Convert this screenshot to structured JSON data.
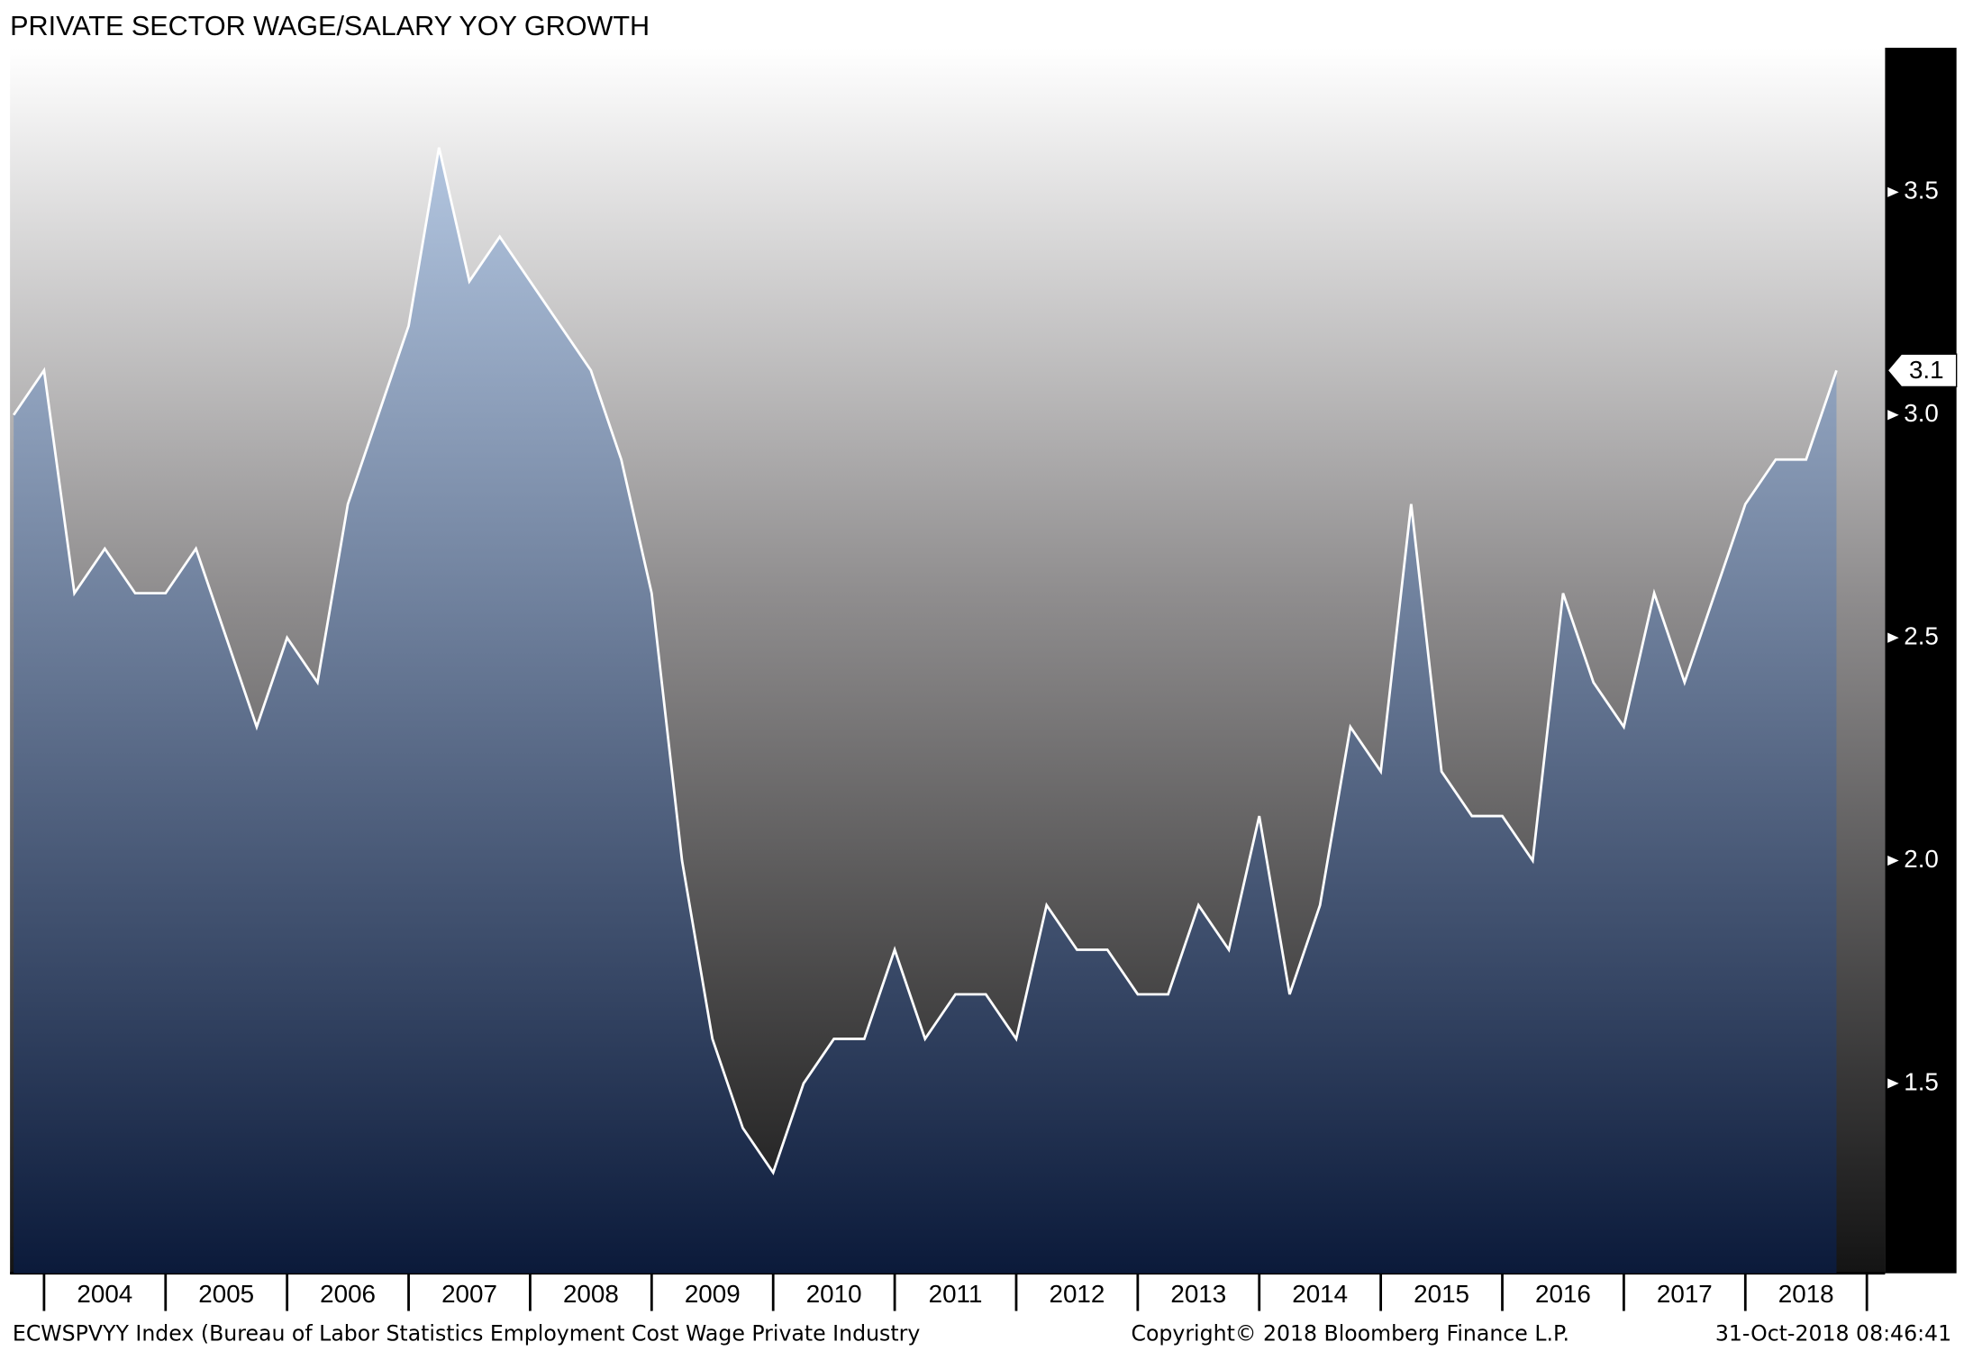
{
  "chart_data": {
    "type": "area",
    "title": "PRIVATE SECTOR WAGE/SALARY YOY GROWTH",
    "source": "ECWSPVYY Index (Bureau of Labor Statistics Employment Cost Wage Private Industry",
    "copyright": "Copyright© 2018 Bloomberg Finance L.P.",
    "timestamp": "31-Oct-2018 08:46:41",
    "x": [
      2003.75,
      2004,
      2004.25,
      2004.5,
      2004.75,
      2005,
      2005.25,
      2005.5,
      2005.75,
      2006,
      2006.25,
      2006.5,
      2006.75,
      2007,
      2007.25,
      2007.5,
      2007.75,
      2008,
      2008.25,
      2008.5,
      2008.75,
      2009,
      2009.25,
      2009.5,
      2009.75,
      2010,
      2010.25,
      2010.5,
      2010.75,
      2011,
      2011.25,
      2011.5,
      2011.75,
      2012,
      2012.25,
      2012.5,
      2012.75,
      2013,
      2013.25,
      2013.5,
      2013.75,
      2014,
      2014.25,
      2014.5,
      2014.75,
      2015,
      2015.25,
      2015.5,
      2015.75,
      2016,
      2016.25,
      2016.5,
      2016.75,
      2017,
      2017.25,
      2017.5,
      2017.75,
      2018,
      2018.25,
      2018.5,
      2018.75
    ],
    "series": [
      {
        "name": "ECWSPVYY Index",
        "color": "#ffffff",
        "values": [
          3.0,
          3.1,
          2.6,
          2.7,
          2.6,
          2.6,
          2.7,
          2.5,
          2.3,
          2.5,
          2.4,
          2.8,
          3.0,
          3.2,
          3.6,
          3.3,
          3.4,
          3.3,
          3.2,
          3.1,
          2.9,
          2.6,
          2.0,
          1.6,
          1.4,
          1.3,
          1.5,
          1.6,
          1.6,
          1.8,
          1.6,
          1.7,
          1.7,
          1.6,
          1.9,
          1.8,
          1.8,
          1.7,
          1.7,
          1.9,
          1.8,
          2.1,
          1.7,
          1.9,
          2.3,
          2.2,
          2.8,
          2.2,
          2.1,
          2.1,
          2.0,
          2.6,
          2.4,
          2.3,
          2.6,
          2.4,
          2.6,
          2.8,
          2.9,
          2.9,
          3.1
        ]
      }
    ],
    "xlim": [
      2003.72,
      2019.15
    ],
    "xticks": [
      {
        "value": 2004.5,
        "label": "2004"
      },
      {
        "value": 2005.5,
        "label": "2005"
      },
      {
        "value": 2006.5,
        "label": "2006"
      },
      {
        "value": 2007.5,
        "label": "2007"
      },
      {
        "value": 2008.5,
        "label": "2008"
      },
      {
        "value": 2009.5,
        "label": "2009"
      },
      {
        "value": 2010.5,
        "label": "2010"
      },
      {
        "value": 2011.5,
        "label": "2011"
      },
      {
        "value": 2012.5,
        "label": "2012"
      },
      {
        "value": 2013.5,
        "label": "2013"
      },
      {
        "value": 2014.5,
        "label": "2014"
      },
      {
        "value": 2015.5,
        "label": "2015"
      },
      {
        "value": 2016.5,
        "label": "2016"
      },
      {
        "value": 2017.5,
        "label": "2017"
      },
      {
        "value": 2018.5,
        "label": "2018"
      }
    ],
    "ylim": [
      1.074,
      3.824
    ],
    "yticks": [
      1.5,
      {
        "value": 2,
        "label": "2.0"
      },
      2.5,
      {
        "value": 3,
        "label": "3.0"
      },
      3.5
    ]
  }
}
